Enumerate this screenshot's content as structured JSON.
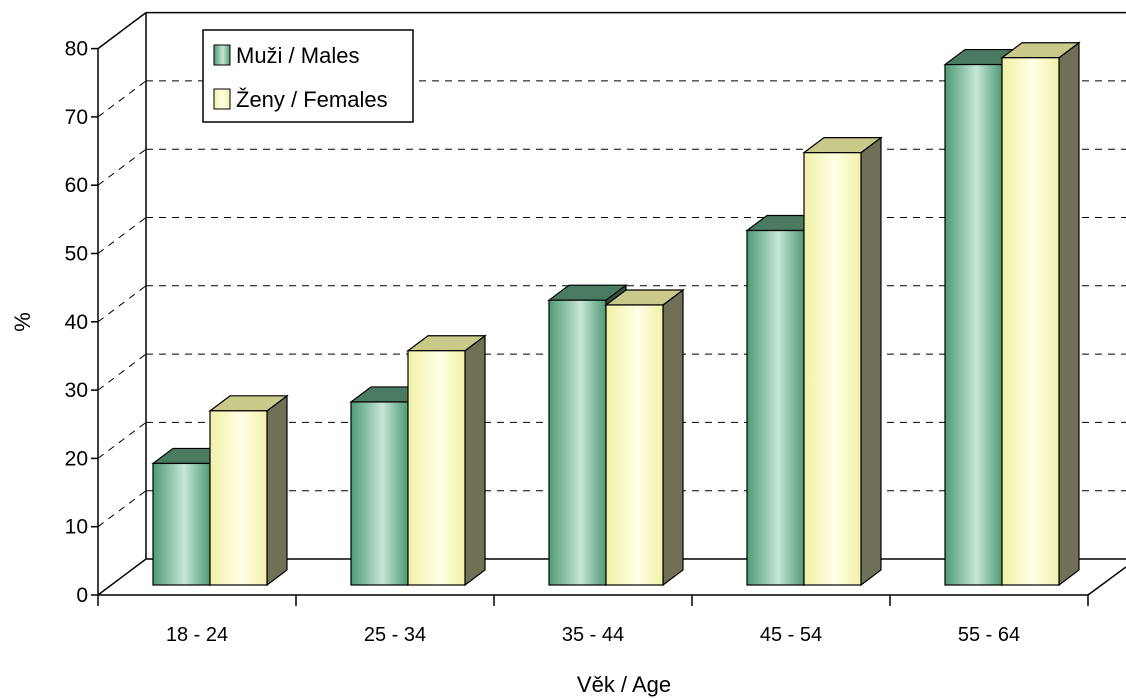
{
  "chart_data": {
    "type": "bar",
    "title": "",
    "xlabel": "Věk / Age",
    "ylabel": "%",
    "ylim": [
      0,
      80
    ],
    "yticks": [
      "0",
      "10",
      "20",
      "30",
      "40",
      "50",
      "60",
      "70",
      "80"
    ],
    "categories": [
      "18 - 24",
      "25 - 34",
      "35 - 44",
      "45 - 54",
      "55 - 64"
    ],
    "series": [
      {
        "name": "Muži / Males",
        "values": [
          17.8,
          26.8,
          41.7,
          51.9,
          76.2
        ]
      },
      {
        "name": "Ženy / Females",
        "values": [
          25.5,
          34.3,
          41.0,
          63.3,
          77.2
        ]
      }
    ],
    "grid": true,
    "legend": "top-left",
    "colors": {
      "males_front": "#6fb893",
      "males_top": "#4a7a62",
      "males_side": "#2f5442",
      "females_front": "#ffffc0",
      "females_top": "#c9c98a",
      "females_side": "#707056",
      "axis": "#000000"
    }
  }
}
